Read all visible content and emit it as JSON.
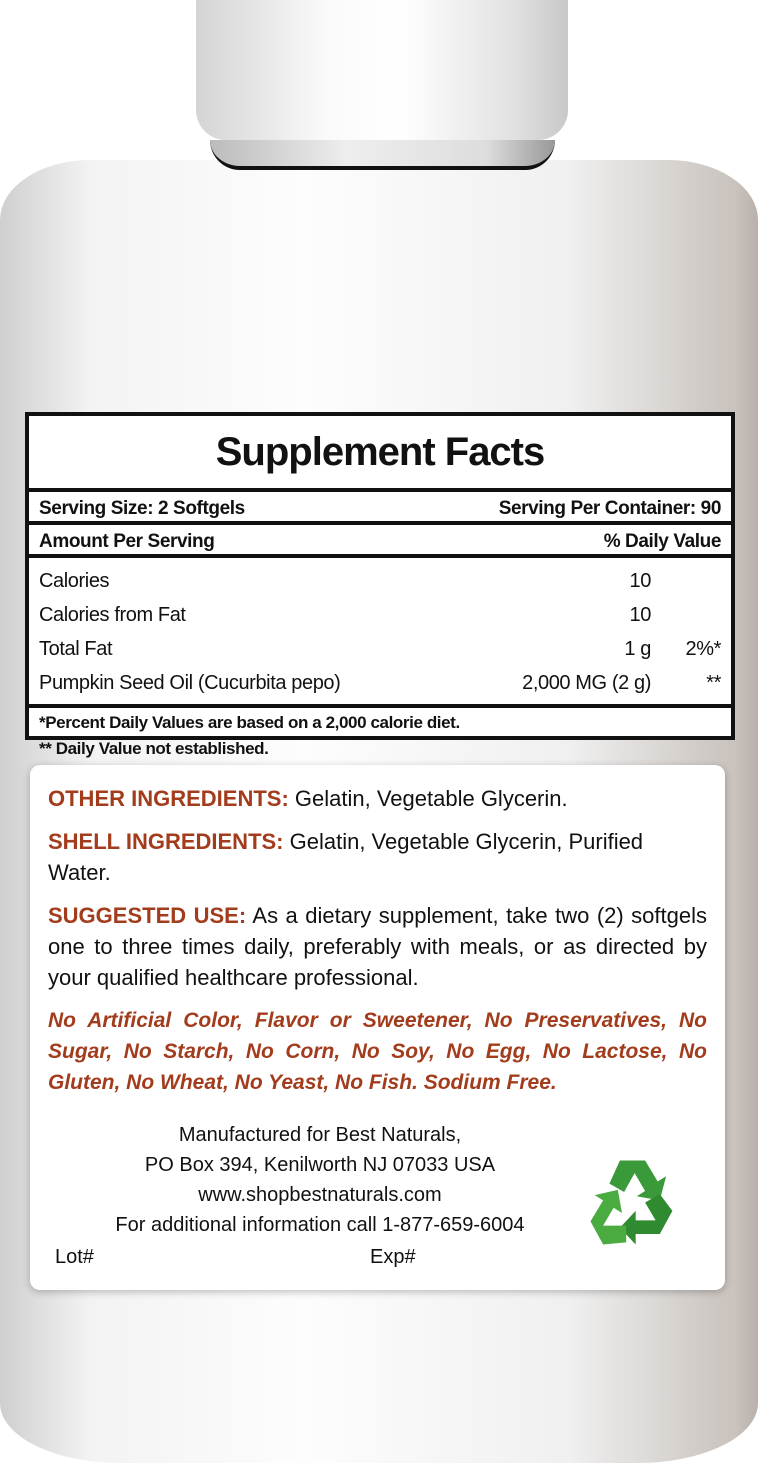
{
  "facts": {
    "title": "Supplement Facts",
    "serving_size": "Serving Size: 2 Softgels",
    "servings_per_container": "Serving Per Container: 90",
    "amount_header": "Amount Per Serving",
    "dv_header": "% Daily Value",
    "rows": [
      {
        "name": "Calories",
        "amount": "10",
        "dv": ""
      },
      {
        "name": "Calories from Fat",
        "amount": "10",
        "dv": ""
      },
      {
        "name": "Total Fat",
        "amount": "1 g",
        "dv": "2%*"
      },
      {
        "name": "Pumpkin Seed Oil (Cucurbita pepo)",
        "amount": "2,000 MG (2 g)",
        "dv": "**"
      }
    ],
    "footnote1": "*Percent Daily Values are based on a 2,000 calorie diet.",
    "footnote2": "** Daily Value not established."
  },
  "ingredients": {
    "other_label": "OTHER INGREDIENTS:",
    "other_text": " Gelatin, Vegetable Glycerin.",
    "shell_label": "SHELL INGREDIENTS:",
    "shell_text": " Gelatin, Vegetable Glycerin, Purified Water.",
    "use_label": "SUGGESTED USE:",
    "use_text": " As a dietary supplement, take two (2) softgels one to three times daily, preferably with meals, or as directed by your qualified healthcare professional.",
    "free_from": "No Artificial Color, Flavor or Sweetener, No Preservatives, No Sugar, No Starch, No Corn, No Soy, No Egg, No Lactose, No Gluten, No Wheat, No Yeast, No Fish. Sodium Free."
  },
  "manufacturer": {
    "line1": "Manufactured for Best Naturals,",
    "line2": "PO Box 394, Kenilworth NJ 07033 USA",
    "website": "www.shopbestnaturals.com",
    "phone_line": "For additional information call 1-877-659-6004",
    "lot": "Lot#",
    "exp": "Exp#"
  },
  "colors": {
    "accent": "#a23c1c",
    "recycle": "#3a9a3a"
  },
  "icons": {
    "recycle": "recycle-icon"
  }
}
